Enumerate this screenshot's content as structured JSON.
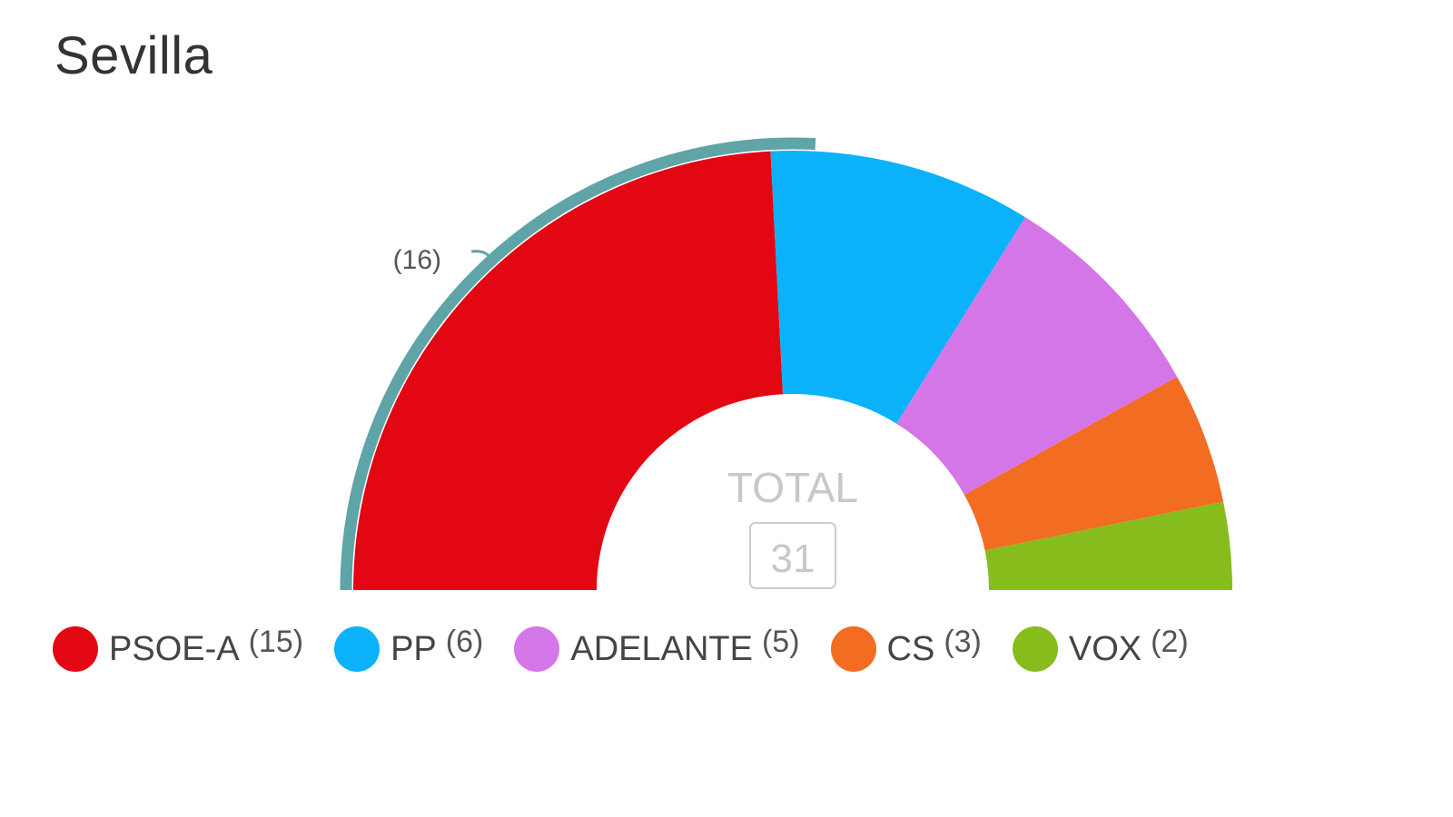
{
  "title": "Sevilla",
  "chart_data": {
    "type": "pie",
    "title": "Sevilla",
    "subtype": "semicircle-parliament",
    "total_label": "TOTAL",
    "total": 31,
    "series": [
      {
        "name": "PSOE-A",
        "value": 15,
        "label": "(15)",
        "color": "#e30613"
      },
      {
        "name": "PP",
        "value": 6,
        "label": "(6)",
        "color": "#0bb2f9"
      },
      {
        "name": "ADELANTE",
        "value": 5,
        "label": "(5)",
        "color": "#d576e8"
      },
      {
        "name": "CS",
        "value": 3,
        "label": "(3)",
        "color": "#f26c22"
      },
      {
        "name": "VOX",
        "value": 2,
        "label": "(2)",
        "color": "#86bd1c"
      }
    ],
    "majority": {
      "value": 16,
      "label": "(16)",
      "color": "#5fa4a6"
    },
    "legend_position": "bottom"
  }
}
